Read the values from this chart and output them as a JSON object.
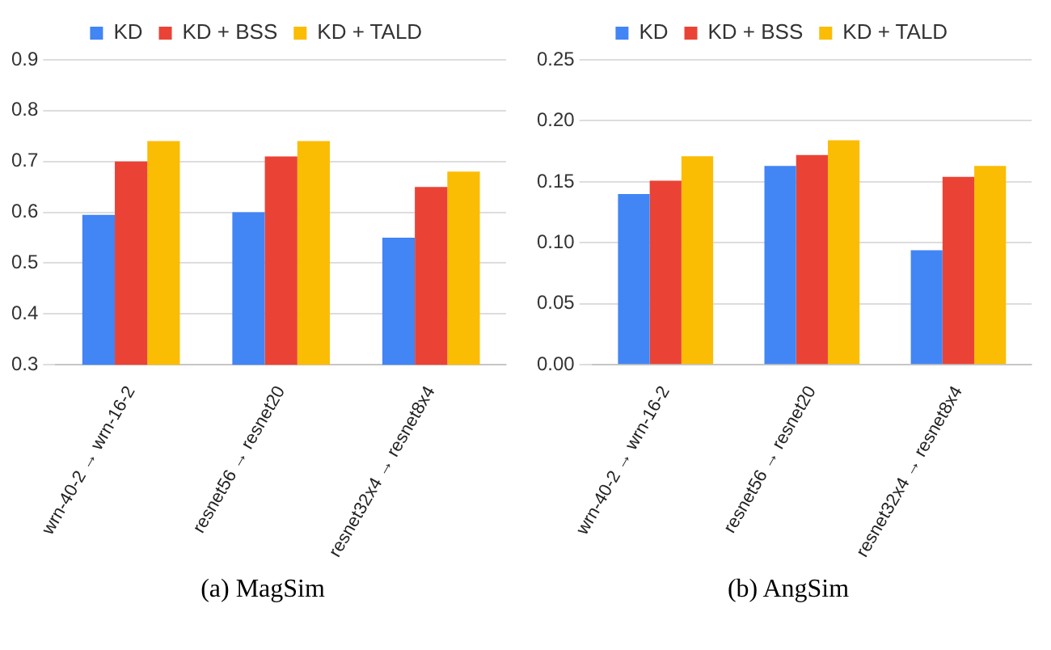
{
  "chart_data": [
    {
      "type": "bar",
      "categories": [
        "wrn-40-2 → wrn-16-2",
        "resnet56 → resnet20",
        "resnet32x4 → resnet8x4"
      ],
      "series": [
        {
          "name": "KD",
          "color": "#4285f4",
          "values": [
            0.595,
            0.6,
            0.55
          ]
        },
        {
          "name": "KD + BSS",
          "color": "#ea4335",
          "values": [
            0.7,
            0.71,
            0.65
          ]
        },
        {
          "name": "KD + TALD",
          "color": "#fbbc04",
          "values": [
            0.74,
            0.74,
            0.68
          ]
        }
      ],
      "ylim": [
        0.3,
        0.9
      ],
      "yticks": [
        0.3,
        0.4,
        0.5,
        0.6,
        0.7,
        0.8,
        0.9
      ],
      "grid": "y",
      "legend": "top",
      "annotations": [
        "(a) MagSim"
      ]
    },
    {
      "type": "bar",
      "categories": [
        "wrn-40-2 → wrn-16-2",
        "resnet56 → resnet20",
        "resnet32x4 → resnet8x4"
      ],
      "series": [
        {
          "name": "KD",
          "color": "#4285f4",
          "values": [
            0.14,
            0.163,
            0.094
          ]
        },
        {
          "name": "KD + BSS",
          "color": "#ea4335",
          "values": [
            0.151,
            0.172,
            0.154
          ]
        },
        {
          "name": "KD + TALD",
          "color": "#fbbc04",
          "values": [
            0.171,
            0.184,
            0.163
          ]
        }
      ],
      "ylim": [
        0,
        0.25
      ],
      "yticks": [
        {
          "value": 0,
          "label": "0.00"
        },
        {
          "value": 0.05,
          "label": "0.05"
        },
        {
          "value": 0.1,
          "label": "0.10"
        },
        {
          "value": 0.15,
          "label": "0.15"
        },
        {
          "value": 0.2,
          "label": "0.20"
        },
        {
          "value": 0.25,
          "label": "0.25"
        }
      ],
      "grid": "y",
      "legend": "top",
      "annotations": [
        "(b) AngSim"
      ]
    }
  ]
}
